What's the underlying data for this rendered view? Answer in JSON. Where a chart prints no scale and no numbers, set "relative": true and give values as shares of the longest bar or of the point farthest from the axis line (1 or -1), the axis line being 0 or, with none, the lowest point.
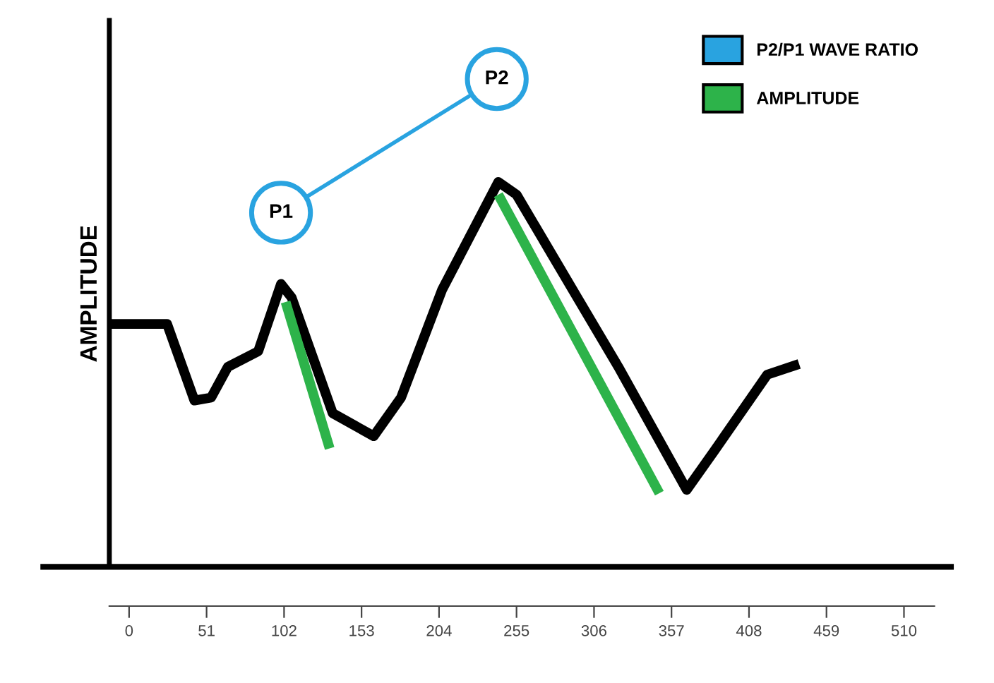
{
  "chart_data": {
    "type": "line",
    "relative": true,
    "ylabel": "AMPLITUDE",
    "xlim": [
      -13,
      530
    ],
    "xticks": [
      0,
      51,
      102,
      153,
      204,
      255,
      306,
      357,
      408,
      459,
      510
    ],
    "legend": "top right",
    "grid": false,
    "tick_labels": "x",
    "series": [
      {
        "x": [
          -13,
          25,
          43,
          54,
          65,
          85,
          100,
          107,
          134,
          161,
          179,
          206,
          243,
          255,
          295,
          322,
          367,
          385,
          420,
          441
        ],
        "values": [
          0.498,
          0.498,
          0.341,
          0.347,
          0.41,
          0.442,
          0.58,
          0.552,
          0.315,
          0.268,
          0.347,
          0.568,
          0.789,
          0.763,
          0.552,
          0.41,
          0.158,
          0.237,
          0.394,
          0.416
        ],
        "color": "#000000"
      },
      {
        "name": "P2/P1 WAVE RATIO",
        "x": [
          100,
          242
        ],
        "values": [
          0.726,
          1.0
        ],
        "color": "#29a3e0",
        "marker": "circle"
      },
      {
        "name": "AMPLITUDE",
        "x": [
          103,
          132
        ],
        "values": [
          0.543,
          0.243
        ],
        "color": "#2db34a"
      },
      {
        "x": [
          243,
          349
        ],
        "values": [
          0.763,
          0.151
        ],
        "color": "#2db34a"
      }
    ],
    "annotations": [
      {
        "text": "P1",
        "x": 100,
        "y": 0.726
      },
      {
        "text": "P2",
        "x": 242,
        "y": 1.0
      }
    ]
  }
}
